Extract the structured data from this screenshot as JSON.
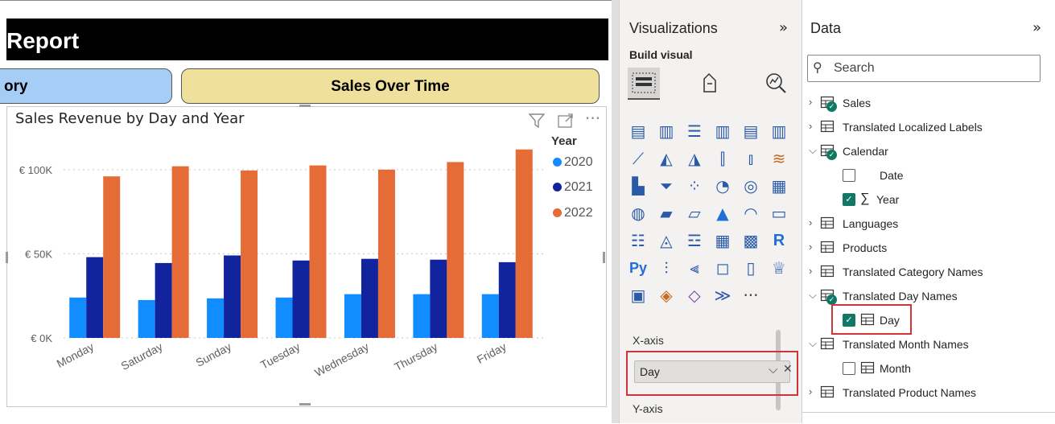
{
  "report": {
    "title": "Report",
    "nav_left": "ory",
    "nav_right": "Sales Over Time"
  },
  "visual": {
    "title": "Sales Revenue by Day and Year",
    "header_icons": [
      "filter-icon",
      "focus-mode-icon",
      "more-options-icon"
    ],
    "legend_title": "Year"
  },
  "chart_data": {
    "type": "bar",
    "title": "Sales Revenue by Day and Year",
    "xlabel": "",
    "ylabel": "",
    "categories": [
      "Monday",
      "Saturday",
      "Sunday",
      "Tuesday",
      "Wednesday",
      "Thursday",
      "Friday"
    ],
    "series": [
      {
        "name": "2020",
        "color": "#118dff",
        "values": [
          24000,
          22500,
          23500,
          24000,
          26000,
          26000,
          26000
        ]
      },
      {
        "name": "2021",
        "color": "#12239e",
        "values": [
          48000,
          44500,
          49000,
          46000,
          47000,
          46500,
          45000
        ]
      },
      {
        "name": "2022",
        "color": "#e66c37",
        "values": [
          96000,
          102000,
          99500,
          102500,
          100000,
          104500,
          112000
        ]
      }
    ],
    "yticks": [
      0,
      50000,
      100000
    ],
    "ytick_labels": [
      "€ 0K",
      "€ 50K",
      "€ 100K"
    ],
    "ylim": [
      0,
      120000
    ],
    "grid": true,
    "legend_position": "right"
  },
  "viz_pane": {
    "title": "Visualizations",
    "collapse_icon": "»",
    "build_visual": "Build visual",
    "x_axis_label": "X-axis",
    "x_axis_field": "Day",
    "y_axis_label": "Y-axis",
    "more_visuals": "···"
  },
  "data_pane": {
    "title": "Data",
    "collapse_icon": "»",
    "search_placeholder": "Search",
    "items": [
      {
        "label": "Sales"
      },
      {
        "label": "Translated Localized Labels"
      },
      {
        "label": "Calendar"
      },
      {
        "label": "Date"
      },
      {
        "label": "Year",
        "prefix": "∑"
      },
      {
        "label": "Languages"
      },
      {
        "label": "Products"
      },
      {
        "label": "Translated Category Names"
      },
      {
        "label": "Translated Day Names"
      },
      {
        "label": "Day"
      },
      {
        "label": "Translated Month Names"
      },
      {
        "label": "Month"
      },
      {
        "label": "Translated Product Names"
      }
    ]
  }
}
